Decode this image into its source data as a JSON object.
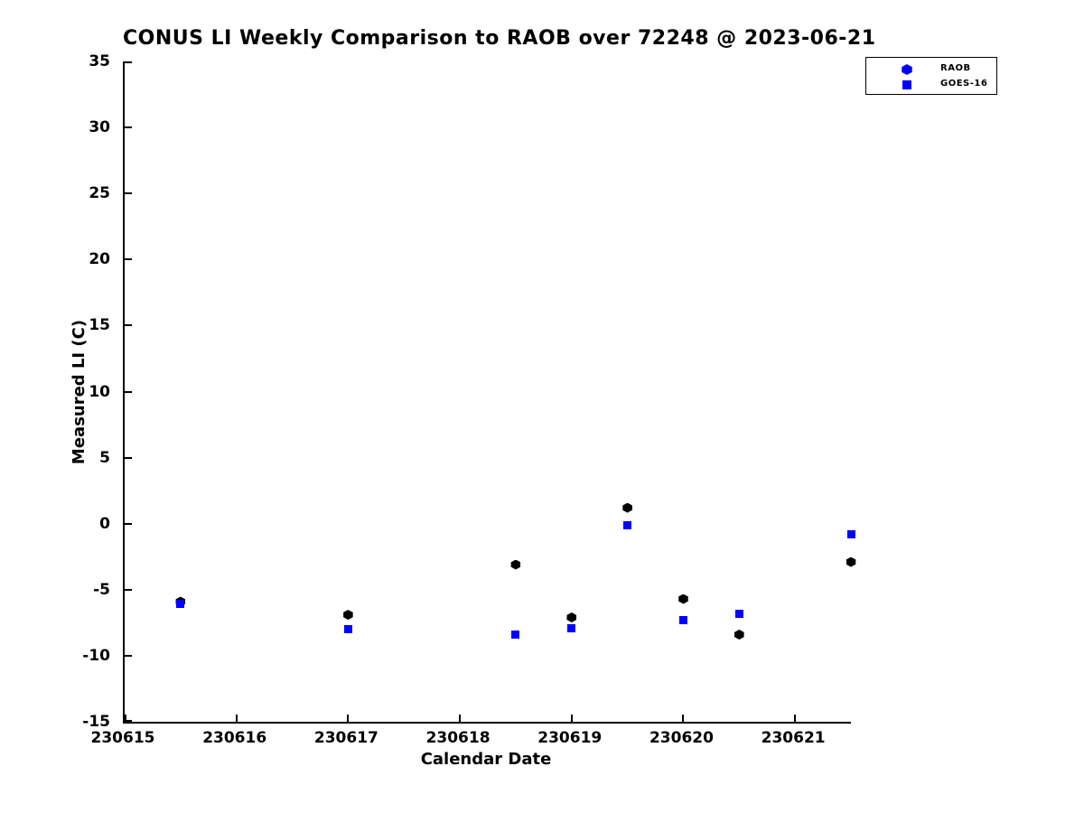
{
  "title": "CONUS LI Weekly Comparison to RAOB over 72248 @ 2023-06-21",
  "chart_data": {
    "type": "scatter",
    "title": "CONUS LI Weekly Comparison to RAOB over 72248 @ 2023-06-21",
    "xlabel": "Calendar Date",
    "ylabel": "Measured LI (C)",
    "xlim": [
      230615,
      230621.5
    ],
    "ylim": [
      -15,
      35
    ],
    "x_ticks": [
      230615,
      230616,
      230617,
      230618,
      230619,
      230620,
      230621
    ],
    "y_ticks": [
      35,
      30,
      25,
      20,
      15,
      10,
      5,
      0,
      -5,
      -10,
      -15
    ],
    "grid": false,
    "legend_position": "upper right",
    "background_color": "#ffffff",
    "axis_color": "#000000",
    "series": [
      {
        "name": "RAOB",
        "marker": "hexagon",
        "color": "#000000",
        "legend_color": "#0000ff",
        "points": [
          [
            230615.5,
            -5.9
          ],
          [
            230617.0,
            -6.9
          ],
          [
            230618.5,
            -3.1
          ],
          [
            230619.0,
            -7.1
          ],
          [
            230619.5,
            1.2
          ],
          [
            230620.0,
            -5.7
          ],
          [
            230620.5,
            -8.4
          ],
          [
            230621.5,
            -2.9
          ]
        ]
      },
      {
        "name": "GOES-16",
        "marker": "square",
        "color": "#0000ff",
        "legend_color": "#0000ff",
        "points": [
          [
            230615.5,
            -6.1
          ],
          [
            230617.0,
            -8.0
          ],
          [
            230618.5,
            -8.4
          ],
          [
            230619.0,
            -7.9
          ],
          [
            230619.5,
            -0.1
          ],
          [
            230620.0,
            -7.3
          ],
          [
            230620.5,
            -6.8
          ],
          [
            230621.5,
            -0.8
          ]
        ]
      }
    ]
  }
}
